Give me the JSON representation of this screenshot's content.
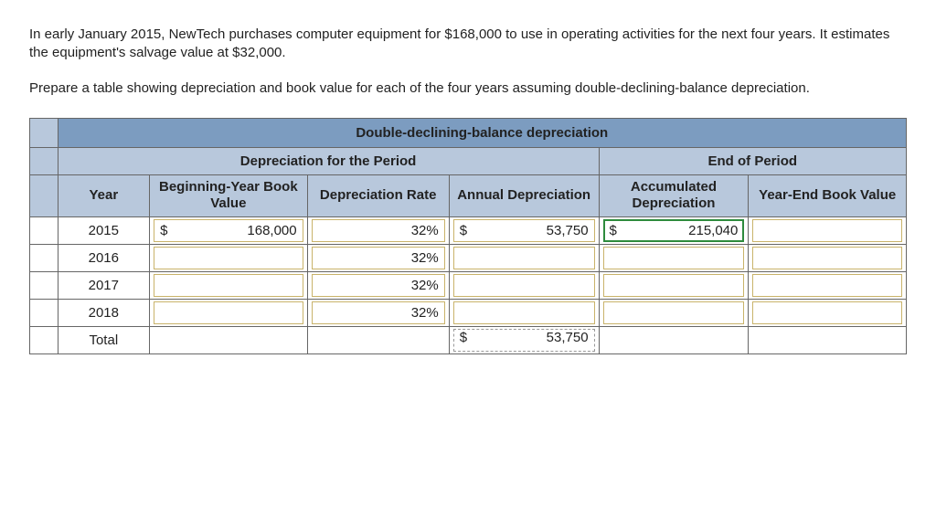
{
  "intro": {
    "p1": "In early January 2015, NewTech purchases computer equipment for $168,000 to use in operating activities for the next four years. It estimates the equipment's salvage value at $32,000.",
    "p2": "Prepare a table showing depreciation and book value for each of the four years assuming double-declining-balance depreciation."
  },
  "table": {
    "title": "Double-declining-balance depreciation",
    "section_period": "Depreciation for the Period",
    "section_end": "End of Period",
    "cols": {
      "year": "Year",
      "bbv": "Beginning-Year Book Value",
      "rate": "Depreciation Rate",
      "annual": "Annual Depreciation",
      "accum": "Accumulated Depreciation",
      "ye": "Year-End Book Value"
    },
    "rows": [
      {
        "year": "2015",
        "bbv_cur": "$",
        "bbv": "168,000",
        "rate": "32%",
        "annual_cur": "$",
        "annual": "53,750",
        "accum_cur": "$",
        "accum": "215,040",
        "ye": ""
      },
      {
        "year": "2016",
        "bbv": "",
        "rate": "32%",
        "annual": "",
        "accum": "",
        "ye": ""
      },
      {
        "year": "2017",
        "bbv": "",
        "rate": "32%",
        "annual": "",
        "accum": "",
        "ye": ""
      },
      {
        "year": "2018",
        "bbv": "",
        "rate": "32%",
        "annual": "",
        "accum": "",
        "ye": ""
      }
    ],
    "total": {
      "label": "Total",
      "annual_cur": "$",
      "annual": "53,750"
    }
  },
  "colors": {
    "header_main": "#7c9cc0",
    "header_sub": "#b8c8dc",
    "border": "#666666",
    "input_border": "#c9b36a",
    "highlight": "#2e8b3d"
  }
}
